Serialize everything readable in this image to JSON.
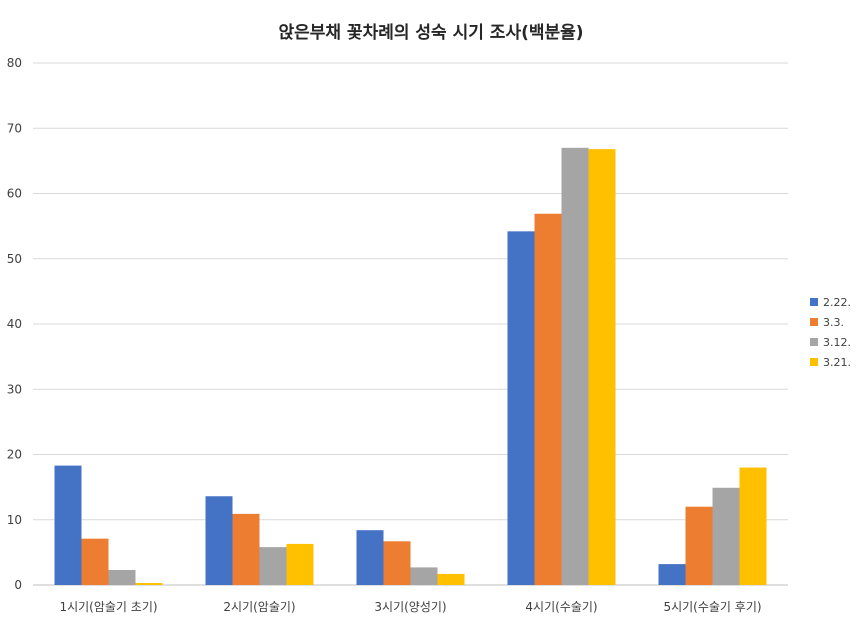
{
  "chart_data": {
    "type": "bar",
    "title": "앉은부채 꽃차례의 성숙 시기 조사(백분율)",
    "categories": [
      "1시기(암술기 초기)",
      "2시기(암술기)",
      "3시기(양성기)",
      "4시기(수술기)",
      "5시기(수술기 후기)"
    ],
    "series": [
      {
        "name": "2.22.",
        "color": "#4472c4",
        "values": [
          18.3,
          13.6,
          8.4,
          54.2,
          3.2
        ]
      },
      {
        "name": "3.3.",
        "color": "#ed7d31",
        "values": [
          7.1,
          10.9,
          6.7,
          56.9,
          12.0
        ]
      },
      {
        "name": "3.12.",
        "color": "#a5a5a5",
        "values": [
          2.3,
          5.8,
          2.7,
          67.0,
          14.9
        ]
      },
      {
        "name": "3.21.",
        "color": "#ffc000",
        "values": [
          0.3,
          6.3,
          1.7,
          66.8,
          18.0
        ]
      }
    ],
    "ylim": [
      0,
      80
    ],
    "yticks": [
      0,
      10,
      20,
      30,
      40,
      50,
      60,
      70,
      80
    ],
    "grid": true,
    "legend_position": "right"
  }
}
